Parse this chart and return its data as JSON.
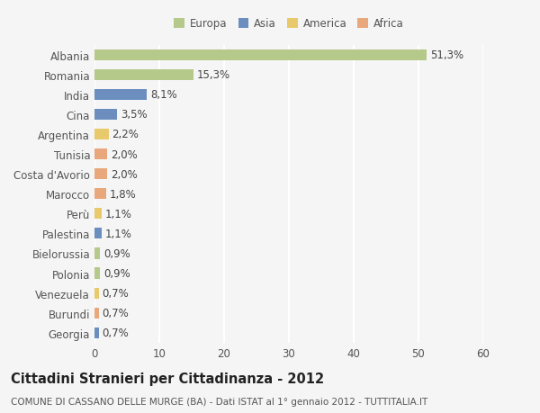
{
  "categories": [
    "Albania",
    "Romania",
    "India",
    "Cina",
    "Argentina",
    "Tunisia",
    "Costa d'Avorio",
    "Marocco",
    "Perù",
    "Palestina",
    "Bielorussia",
    "Polonia",
    "Venezuela",
    "Burundi",
    "Georgia"
  ],
  "values": [
    51.3,
    15.3,
    8.1,
    3.5,
    2.2,
    2.0,
    2.0,
    1.8,
    1.1,
    1.1,
    0.9,
    0.9,
    0.7,
    0.7,
    0.7
  ],
  "labels": [
    "51,3%",
    "15,3%",
    "8,1%",
    "3,5%",
    "2,2%",
    "2,0%",
    "2,0%",
    "1,8%",
    "1,1%",
    "1,1%",
    "0,9%",
    "0,9%",
    "0,7%",
    "0,7%",
    "0,7%"
  ],
  "colors": [
    "#b5c98a",
    "#b5c98a",
    "#6b8ebf",
    "#6b8ebf",
    "#e8c96b",
    "#e8a87c",
    "#e8a87c",
    "#e8a87c",
    "#e8c96b",
    "#6b8ebf",
    "#b5c98a",
    "#b5c98a",
    "#e8c96b",
    "#e8a87c",
    "#6b8ebf"
  ],
  "legend_labels": [
    "Europa",
    "Asia",
    "America",
    "Africa"
  ],
  "legend_colors": [
    "#b5c98a",
    "#6b8ebf",
    "#e8c96b",
    "#e8a87c"
  ],
  "title": "Cittadini Stranieri per Cittadinanza - 2012",
  "subtitle": "COMUNE DI CASSANO DELLE MURGE (BA) - Dati ISTAT al 1° gennaio 2012 - TUTTITALIA.IT",
  "xlim": [
    0,
    60
  ],
  "xticks": [
    0,
    10,
    20,
    30,
    40,
    50,
    60
  ],
  "background_color": "#f5f5f5",
  "grid_color": "#ffffff",
  "bar_height": 0.55,
  "label_fontsize": 8.5,
  "tick_fontsize": 8.5,
  "title_fontsize": 10.5,
  "subtitle_fontsize": 7.5
}
